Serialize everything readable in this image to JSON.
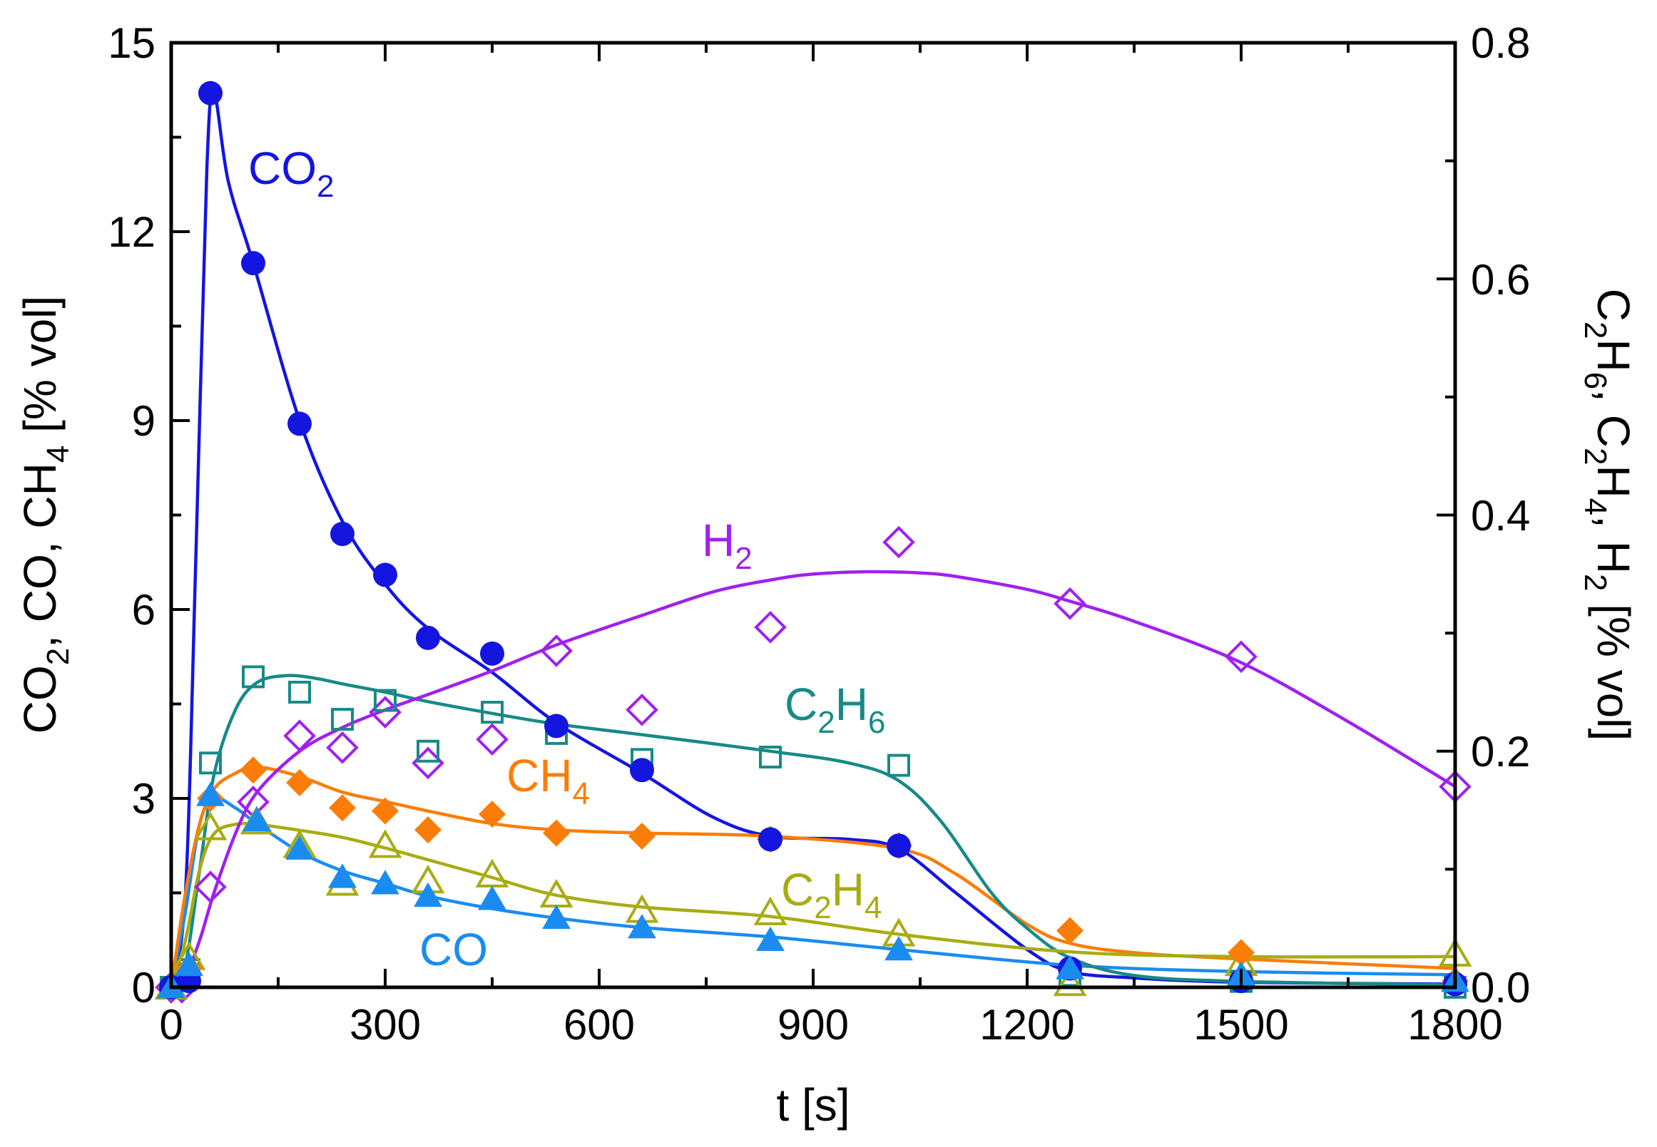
{
  "chart_data": {
    "type": "scatter",
    "title": "",
    "x_axis": {
      "label": "t [s]",
      "range": [
        0,
        1800
      ],
      "ticks": [
        "0",
        "300",
        "600",
        "900",
        "1200",
        "1500",
        "1800"
      ],
      "minor_step": 150
    },
    "y_axis_left": {
      "label_parts": [
        "CO",
        "2",
        ", CO, CH",
        "4",
        " [% vol]"
      ],
      "range": [
        0,
        15
      ],
      "ticks": [
        "0",
        "3",
        "6",
        "9",
        "12",
        "15"
      ],
      "minor_step": 1.5
    },
    "y_axis_right": {
      "label_parts": [
        "C",
        "2",
        "H",
        "6",
        ", C",
        "2",
        "H",
        "4",
        ", H",
        "2",
        " [% vol]"
      ],
      "range": [
        0,
        0.8
      ],
      "ticks": [
        "0.0",
        "0.2",
        "0.4",
        "0.6",
        "0.8"
      ],
      "minor_step": 0.1
    },
    "grid": false,
    "legend": "inline labels",
    "series": [
      {
        "id": "co2",
        "axis": "left",
        "color": "#1515e0",
        "marker": "filled-circle",
        "label": [
          "CO",
          "2"
        ],
        "x": [
          0,
          25,
          55,
          115,
          180,
          240,
          300,
          360,
          450,
          540,
          660,
          840,
          1020,
          1260,
          1500,
          1800
        ],
        "y": [
          0,
          0.1,
          14.2,
          11.5,
          8.95,
          7.2,
          6.55,
          5.55,
          5.3,
          4.15,
          3.45,
          2.35,
          2.25,
          0.3,
          0.1,
          0.05
        ],
        "fit_x": [
          0,
          20,
          35,
          50,
          60,
          80,
          115,
          180,
          240,
          300,
          360,
          450,
          540,
          660,
          760,
          840,
          950,
          1020,
          1100,
          1200,
          1260,
          1350,
          1500,
          1800
        ],
        "fit_y": [
          0,
          1.5,
          7,
          13,
          14.2,
          12.8,
          11.5,
          9.0,
          7.4,
          6.4,
          5.7,
          5.0,
          4.2,
          3.4,
          2.7,
          2.4,
          2.35,
          2.2,
          1.5,
          0.6,
          0.25,
          0.15,
          0.08,
          0.05
        ]
      },
      {
        "id": "co",
        "axis": "left",
        "color": "#1a8cf0",
        "marker": "filled-triangle",
        "label": [
          "CO"
        ],
        "x": [
          0,
          25,
          55,
          120,
          180,
          240,
          300,
          360,
          450,
          540,
          660,
          840,
          1020,
          1260,
          1500,
          1800
        ],
        "y": [
          0,
          0.35,
          3.05,
          2.65,
          2.2,
          1.75,
          1.65,
          1.45,
          1.4,
          1.1,
          0.95,
          0.75,
          0.6,
          0.3,
          0.2,
          0.1
        ],
        "fit_x": [
          0,
          20,
          40,
          60,
          90,
          120,
          180,
          240,
          300,
          360,
          450,
          540,
          660,
          840,
          1020,
          1260,
          1500,
          1800
        ],
        "fit_y": [
          0,
          1.2,
          2.6,
          3.0,
          2.85,
          2.6,
          2.15,
          1.85,
          1.65,
          1.45,
          1.25,
          1.1,
          0.95,
          0.8,
          0.6,
          0.35,
          0.25,
          0.2
        ]
      },
      {
        "id": "ch4",
        "axis": "left",
        "color": "#fb7d07",
        "marker": "filled-diamond",
        "label": [
          "CH",
          "4"
        ],
        "x": [
          0,
          25,
          55,
          115,
          180,
          240,
          300,
          360,
          450,
          540,
          660,
          840,
          1020,
          1260,
          1500,
          1800
        ],
        "y": [
          0,
          0.3,
          3.0,
          3.45,
          3.25,
          2.85,
          2.8,
          2.5,
          2.75,
          2.45,
          2.4,
          2.35,
          2.25,
          0.9,
          0.55,
          0.1
        ],
        "fit_x": [
          0,
          20,
          40,
          60,
          90,
          120,
          180,
          240,
          300,
          360,
          450,
          540,
          660,
          840,
          1020,
          1100,
          1200,
          1260,
          1350,
          1500,
          1800
        ],
        "fit_y": [
          0,
          1.5,
          2.6,
          3.15,
          3.4,
          3.5,
          3.35,
          3.1,
          2.95,
          2.8,
          2.6,
          2.5,
          2.45,
          2.4,
          2.2,
          1.8,
          1.0,
          0.7,
          0.55,
          0.45,
          0.3
        ]
      },
      {
        "id": "c2h6",
        "axis": "right",
        "color": "#178a87",
        "marker": "open-square",
        "label": [
          "C",
          "2",
          "H",
          "6"
        ],
        "x": [
          0,
          25,
          55,
          115,
          180,
          240,
          300,
          360,
          450,
          540,
          660,
          840,
          1020,
          1260,
          1500,
          1800
        ],
        "y": [
          0,
          0.015,
          0.19,
          0.263,
          0.25,
          0.227,
          0.243,
          0.2,
          0.233,
          0.215,
          0.193,
          0.195,
          0.188,
          0.01,
          0.005,
          0.0
        ],
        "fit_x": [
          0,
          20,
          40,
          60,
          90,
          120,
          160,
          200,
          240,
          300,
          360,
          450,
          540,
          660,
          840,
          950,
          1020,
          1080,
          1150,
          1200,
          1260,
          1350,
          1500,
          1800
        ],
        "fit_y": [
          0,
          0.02,
          0.1,
          0.18,
          0.235,
          0.258,
          0.264,
          0.262,
          0.257,
          0.25,
          0.242,
          0.232,
          0.223,
          0.214,
          0.2,
          0.19,
          0.175,
          0.14,
          0.08,
          0.05,
          0.025,
          0.01,
          0.005,
          0.002
        ]
      },
      {
        "id": "c2h4",
        "axis": "right",
        "color": "#a8ac12",
        "marker": "open-triangle",
        "label": [
          "C",
          "2",
          "H",
          "4"
        ],
        "x": [
          0,
          25,
          55,
          120,
          180,
          240,
          300,
          360,
          450,
          540,
          660,
          840,
          1020,
          1260,
          1500,
          1800
        ],
        "y": [
          0,
          0.025,
          0.135,
          0.14,
          0.12,
          0.088,
          0.12,
          0.09,
          0.095,
          0.078,
          0.065,
          0.063,
          0.045,
          0.003,
          0.02,
          0.028
        ],
        "fit_x": [
          0,
          20,
          40,
          60,
          90,
          120,
          180,
          240,
          300,
          360,
          450,
          540,
          660,
          840,
          1020,
          1260,
          1500,
          1800
        ],
        "fit_y": [
          0,
          0.04,
          0.1,
          0.13,
          0.138,
          0.138,
          0.133,
          0.127,
          0.118,
          0.108,
          0.093,
          0.078,
          0.068,
          0.06,
          0.045,
          0.03,
          0.026,
          0.026
        ]
      },
      {
        "id": "h2",
        "axis": "right",
        "color": "#a020f0",
        "marker": "open-diamond",
        "label": [
          "H",
          "2"
        ],
        "x": [
          0,
          15,
          55,
          115,
          180,
          240,
          300,
          360,
          450,
          540,
          660,
          840,
          1020,
          1260,
          1500,
          1800
        ],
        "y": [
          0.0,
          0.0,
          0.085,
          0.157,
          0.213,
          0.203,
          0.233,
          0.19,
          0.21,
          0.285,
          0.235,
          0.305,
          0.377,
          0.325,
          0.28,
          0.17
        ],
        "fit_x": [
          0,
          20,
          40,
          60,
          90,
          120,
          180,
          240,
          300,
          360,
          450,
          540,
          660,
          760,
          840,
          900,
          980,
          1050,
          1100,
          1200,
          1260,
          1350,
          1500,
          1650,
          1800
        ],
        "fit_y": [
          0,
          0.01,
          0.04,
          0.08,
          0.13,
          0.165,
          0.2,
          0.22,
          0.235,
          0.248,
          0.268,
          0.29,
          0.315,
          0.335,
          0.345,
          0.35,
          0.352,
          0.351,
          0.348,
          0.337,
          0.327,
          0.31,
          0.275,
          0.225,
          0.17
        ]
      }
    ]
  }
}
